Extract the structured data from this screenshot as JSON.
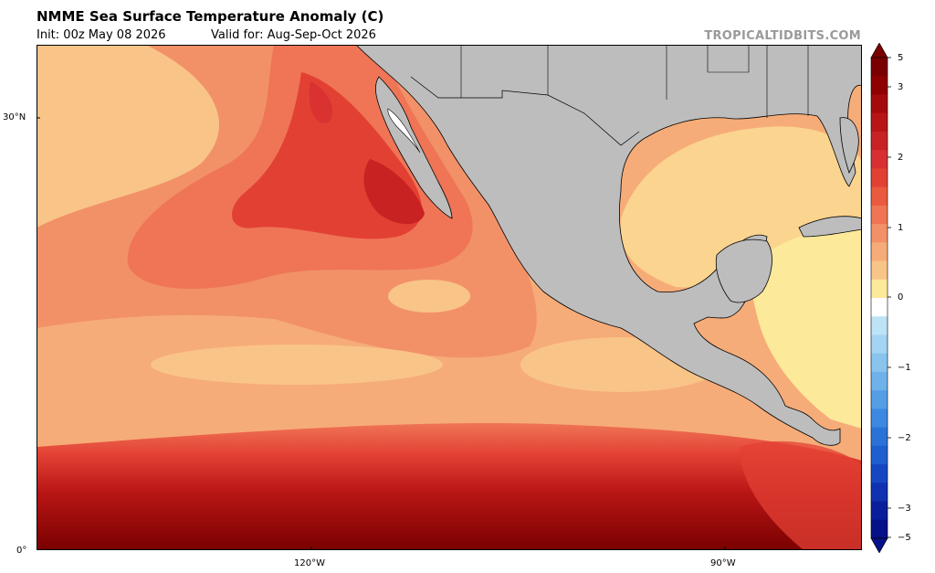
{
  "header": {
    "title": "NMME Sea Surface Temperature Anomaly (C)",
    "init": "Init: 00z May 08 2026",
    "valid": "Valid for: Aug-Sep-Oct 2026",
    "brand": "TROPICALTIDBITS.COM"
  },
  "axes": {
    "lat_labels": [
      "30°N",
      "0°"
    ],
    "lon_labels": [
      "120°W",
      "90°W"
    ]
  },
  "colorbar": {
    "labels": [
      "5",
      "3",
      "2",
      "1",
      "0",
      "−1",
      "−2",
      "−3",
      "−5"
    ],
    "colors": [
      "#7a0000",
      "#8f0000",
      "#a50a0a",
      "#b81515",
      "#c92222",
      "#d83030",
      "#e34034",
      "#ea5a3e",
      "#ef7556",
      "#f29168",
      "#f6ac78",
      "#f9c488",
      "#fde99a",
      "#ffffff",
      "#bde3f6",
      "#a3d4f3",
      "#88c4ee",
      "#6fb2ea",
      "#559ee6",
      "#3d88e0",
      "#2b72d8",
      "#1f5ecf",
      "#1547c2",
      "#0e32b0",
      "#0a1e9c",
      "#061088"
    ]
  },
  "colors": {
    "land": "#bdbdbd",
    "coast": "#000000",
    "ocean_base": "#f6ac78"
  }
}
